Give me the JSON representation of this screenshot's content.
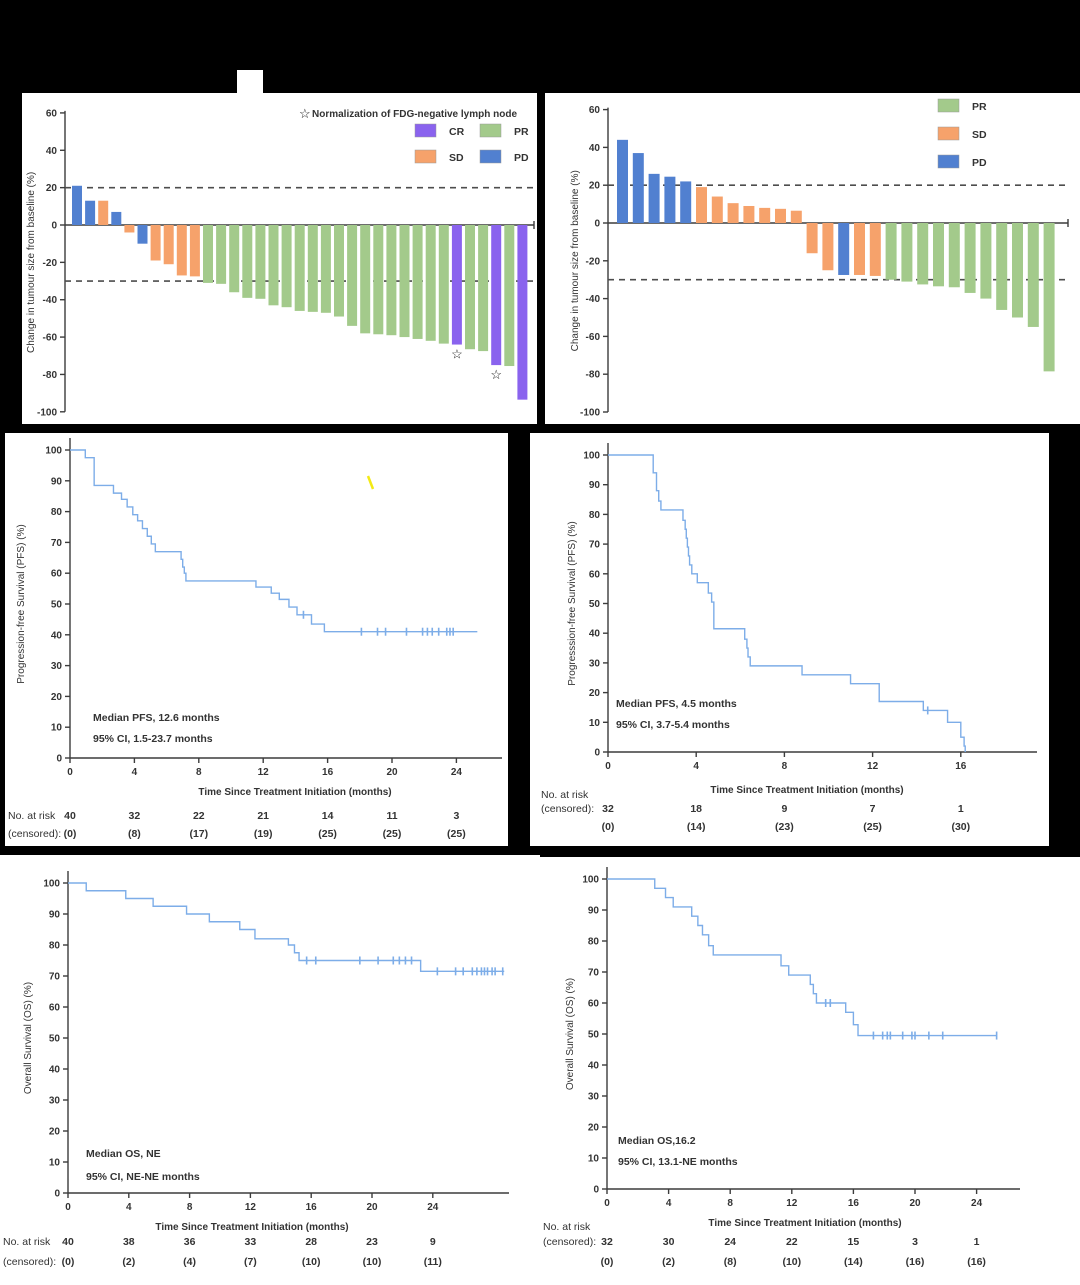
{
  "figure": {
    "background": "#000000",
    "panel_background": "#ffffff"
  },
  "colors": {
    "CR": "#8a63ee",
    "SD": "#f6a26b",
    "PR": "#a3ca8b",
    "PD": "#5180d0",
    "curve": "#7dade8",
    "axis": "#3c3c3c",
    "refline": "#4d4d4d",
    "text": "#333333",
    "artifact_yellow": "#f3ea15"
  },
  "icons": {
    "star": "☆"
  },
  "chart_data": [
    {
      "id": "wf-left",
      "type": "bar",
      "subtype": "waterfall",
      "ylabel": "Change in tumour size from baseline (%)",
      "ylim": [
        -100,
        60
      ],
      "yticks": [
        60,
        40,
        20,
        0,
        -20,
        -40,
        -60,
        -80,
        -100
      ],
      "reference_lines": [
        20,
        -30
      ],
      "note": {
        "icon": "star",
        "text": "Normalization of FDG-negative lymph node"
      },
      "legend": [
        {
          "label": "CR",
          "color_key": "CR"
        },
        {
          "label": "SD",
          "color_key": "SD"
        },
        {
          "label": "PR",
          "color_key": "PR"
        },
        {
          "label": "PD",
          "color_key": "PD"
        }
      ],
      "bars": [
        {
          "value": 21,
          "group": "PD"
        },
        {
          "value": 13,
          "group": "PD"
        },
        {
          "value": 13,
          "group": "SD"
        },
        {
          "value": 7,
          "group": "PD"
        },
        {
          "value": -4,
          "group": "SD"
        },
        {
          "value": -10,
          "group": "PD"
        },
        {
          "value": -19,
          "group": "SD"
        },
        {
          "value": -21,
          "group": "SD"
        },
        {
          "value": -27,
          "group": "SD"
        },
        {
          "value": -27.5,
          "group": "SD"
        },
        {
          "value": -31,
          "group": "PR"
        },
        {
          "value": -31.5,
          "group": "PR"
        },
        {
          "value": -36,
          "group": "PR"
        },
        {
          "value": -39,
          "group": "PR"
        },
        {
          "value": -39.5,
          "group": "PR"
        },
        {
          "value": -43,
          "group": "PR"
        },
        {
          "value": -44,
          "group": "PR"
        },
        {
          "value": -46,
          "group": "PR"
        },
        {
          "value": -46.5,
          "group": "PR"
        },
        {
          "value": -47,
          "group": "PR"
        },
        {
          "value": -49,
          "group": "PR"
        },
        {
          "value": -54,
          "group": "PR"
        },
        {
          "value": -58,
          "group": "PR"
        },
        {
          "value": -58.5,
          "group": "PR"
        },
        {
          "value": -59,
          "group": "PR"
        },
        {
          "value": -60,
          "group": "PR"
        },
        {
          "value": -61,
          "group": "PR"
        },
        {
          "value": -62,
          "group": "PR"
        },
        {
          "value": -63.5,
          "group": "PR"
        },
        {
          "value": -64,
          "group": "CR",
          "star": true
        },
        {
          "value": -66.5,
          "group": "PR"
        },
        {
          "value": -67.5,
          "group": "PR"
        },
        {
          "value": -75,
          "group": "CR",
          "star": true
        },
        {
          "value": -75.5,
          "group": "PR"
        },
        {
          "value": -93.5,
          "group": "CR"
        }
      ]
    },
    {
      "id": "wf-right",
      "type": "bar",
      "subtype": "waterfall",
      "ylabel": "Change in tumour size from baseline (%)",
      "ylim": [
        -100,
        60
      ],
      "yticks": [
        60,
        40,
        20,
        0,
        -20,
        -40,
        -60,
        -80,
        -100
      ],
      "reference_lines": [
        20,
        -30
      ],
      "legend": [
        {
          "label": "PR",
          "color_key": "PR"
        },
        {
          "label": "SD",
          "color_key": "SD"
        },
        {
          "label": "PD",
          "color_key": "PD"
        }
      ],
      "bars": [
        {
          "value": 44,
          "group": "PD"
        },
        {
          "value": 37,
          "group": "PD"
        },
        {
          "value": 26,
          "group": "PD"
        },
        {
          "value": 24.5,
          "group": "PD"
        },
        {
          "value": 22,
          "group": "PD"
        },
        {
          "value": 19,
          "group": "SD"
        },
        {
          "value": 14,
          "group": "SD"
        },
        {
          "value": 10.5,
          "group": "SD"
        },
        {
          "value": 9,
          "group": "SD"
        },
        {
          "value": 8,
          "group": "SD"
        },
        {
          "value": 7.5,
          "group": "SD"
        },
        {
          "value": 6.5,
          "group": "SD"
        },
        {
          "value": -16,
          "group": "SD"
        },
        {
          "value": -25,
          "group": "SD"
        },
        {
          "value": -27.5,
          "group": "PD"
        },
        {
          "value": -27.5,
          "group": "SD"
        },
        {
          "value": -28,
          "group": "SD"
        },
        {
          "value": -30,
          "group": "PR"
        },
        {
          "value": -31,
          "group": "PR"
        },
        {
          "value": -32.5,
          "group": "PR"
        },
        {
          "value": -33.5,
          "group": "PR"
        },
        {
          "value": -34,
          "group": "PR"
        },
        {
          "value": -37,
          "group": "PR"
        },
        {
          "value": -40,
          "group": "PR"
        },
        {
          "value": -46,
          "group": "PR"
        },
        {
          "value": -50,
          "group": "PR"
        },
        {
          "value": -55,
          "group": "PR"
        },
        {
          "value": -78.5,
          "group": "PR"
        }
      ]
    },
    {
      "id": "km-pfs-left",
      "type": "line",
      "subtype": "kaplan-meier",
      "ylabel": "Progression-free Survival (PFS) (%)",
      "xlabel": "Time Since Treatment Initiation (months)",
      "ylim": [
        0,
        100
      ],
      "yticks": [
        0,
        10,
        20,
        30,
        40,
        50,
        60,
        70,
        80,
        90,
        100
      ],
      "xticks": [
        0,
        4,
        8,
        12,
        16,
        20,
        24
      ],
      "annotation": [
        "Median PFS, 12.6 months",
        "95% CI, 1.5-23.7 months"
      ],
      "steps": [
        [
          0,
          100
        ],
        [
          0.95,
          97.5
        ],
        [
          1.5,
          88.5
        ],
        [
          2.7,
          86
        ],
        [
          3.2,
          84
        ],
        [
          3.55,
          81.5
        ],
        [
          3.9,
          79
        ],
        [
          4.2,
          77
        ],
        [
          4.5,
          74.5
        ],
        [
          4.8,
          72
        ],
        [
          5.05,
          69.5
        ],
        [
          5.3,
          67
        ],
        [
          6.9,
          64.5
        ],
        [
          7.0,
          62
        ],
        [
          7.1,
          60
        ],
        [
          7.2,
          57.5
        ],
        [
          11.55,
          55.5
        ],
        [
          12.5,
          53.5
        ],
        [
          13.0,
          51.5
        ],
        [
          13.6,
          49
        ],
        [
          14.1,
          46.5
        ],
        [
          15.0,
          43.5
        ],
        [
          15.8,
          41
        ]
      ],
      "curve_end": 25.3,
      "censor_marks": [
        [
          14.5,
          46.5
        ],
        [
          18.1,
          41
        ],
        [
          19.1,
          41
        ],
        [
          19.6,
          41
        ],
        [
          20.9,
          41
        ],
        [
          21.9,
          41
        ],
        [
          22.2,
          41
        ],
        [
          22.5,
          41
        ],
        [
          22.9,
          41
        ],
        [
          23.4,
          41
        ],
        [
          23.6,
          41
        ],
        [
          23.8,
          41
        ]
      ],
      "risk_table": {
        "label_line1": "No. at risk",
        "label_line2": "(censored):",
        "times": [
          0,
          4,
          8,
          12,
          16,
          20,
          24
        ],
        "at_risk": [
          40,
          32,
          22,
          21,
          14,
          11,
          3
        ],
        "censored": [
          0,
          8,
          17,
          19,
          25,
          25,
          25
        ],
        "layout": "inline"
      }
    },
    {
      "id": "km-pfs-right",
      "type": "line",
      "subtype": "kaplan-meier",
      "ylabel": "Progresssion-free Survival (PFS) (%)",
      "xlabel": "Time Since Treatment Initiation (months)",
      "ylim": [
        0,
        100
      ],
      "yticks": [
        0,
        10,
        20,
        30,
        40,
        50,
        60,
        70,
        80,
        90,
        100
      ],
      "xticks": [
        0,
        4,
        8,
        12,
        16
      ],
      "annotation": [
        "Median PFS, 4.5 months",
        "95% CI, 3.7-5.4 months"
      ],
      "steps": [
        [
          0,
          100
        ],
        [
          2.05,
          94
        ],
        [
          2.2,
          88
        ],
        [
          2.3,
          84.5
        ],
        [
          2.4,
          81.5
        ],
        [
          3.4,
          78
        ],
        [
          3.5,
          75
        ],
        [
          3.55,
          72
        ],
        [
          3.6,
          69
        ],
        [
          3.65,
          66
        ],
        [
          3.7,
          63
        ],
        [
          3.8,
          60
        ],
        [
          4.05,
          57
        ],
        [
          4.55,
          53.5
        ],
        [
          4.7,
          50.5
        ],
        [
          4.8,
          41.5
        ],
        [
          6.2,
          38
        ],
        [
          6.3,
          35
        ],
        [
          6.35,
          32
        ],
        [
          6.45,
          29
        ],
        [
          8.8,
          26
        ],
        [
          11.0,
          23
        ],
        [
          12.3,
          17
        ],
        [
          14.3,
          14
        ],
        [
          15.4,
          10
        ],
        [
          16.0,
          5
        ],
        [
          16.15,
          2
        ],
        [
          16.2,
          0
        ]
      ],
      "curve_end": 16.2,
      "censor_marks": [
        [
          14.5,
          14
        ]
      ],
      "risk_table": {
        "label_line1": "No. at risk",
        "label_line2": "(censored):",
        "times": [
          0,
          4,
          8,
          12,
          16
        ],
        "at_risk": [
          32,
          18,
          9,
          7,
          1
        ],
        "censored": [
          0,
          14,
          23,
          25,
          30
        ],
        "layout": "stacked"
      }
    },
    {
      "id": "km-os-left",
      "type": "line",
      "subtype": "kaplan-meier",
      "ylabel": "Overall Survival (OS) (%)",
      "xlabel": "Time Since Treatment Initiation (months)",
      "ylim": [
        0,
        100
      ],
      "yticks": [
        0,
        10,
        20,
        30,
        40,
        50,
        60,
        70,
        80,
        90,
        100
      ],
      "xticks": [
        0,
        4,
        8,
        12,
        16,
        20,
        24
      ],
      "annotation": [
        "Median OS, NE",
        "95% CI, NE-NE months"
      ],
      "steps": [
        [
          0,
          100
        ],
        [
          1.2,
          97.5
        ],
        [
          3.8,
          95
        ],
        [
          5.6,
          92.5
        ],
        [
          7.8,
          90
        ],
        [
          9.3,
          87.5
        ],
        [
          11.3,
          85
        ],
        [
          12.3,
          82
        ],
        [
          14.5,
          80
        ],
        [
          14.9,
          77.5
        ],
        [
          15.2,
          75
        ],
        [
          23.2,
          71.5
        ]
      ],
      "curve_end": 28.7,
      "censor_marks": [
        [
          15.7,
          75
        ],
        [
          16.3,
          75
        ],
        [
          19.2,
          75
        ],
        [
          20.4,
          75
        ],
        [
          21.4,
          75
        ],
        [
          21.8,
          75
        ],
        [
          22.2,
          75
        ],
        [
          22.6,
          75
        ],
        [
          24.3,
          71.5
        ],
        [
          25.5,
          71.5
        ],
        [
          26.0,
          71.5
        ],
        [
          26.6,
          71.5
        ],
        [
          26.9,
          71.5
        ],
        [
          27.2,
          71.5
        ],
        [
          27.4,
          71.5
        ],
        [
          27.6,
          71.5
        ],
        [
          27.9,
          71.5
        ],
        [
          28.1,
          71.5
        ],
        [
          28.6,
          71.5
        ]
      ],
      "risk_table": {
        "label_line1": "No. at risk",
        "label_line2": "(censored):",
        "times": [
          0,
          4,
          8,
          12,
          16,
          20,
          24
        ],
        "at_risk": [
          40,
          38,
          36,
          33,
          28,
          23,
          9
        ],
        "censored": [
          0,
          2,
          4,
          7,
          10,
          10,
          11
        ],
        "layout": "inline"
      }
    },
    {
      "id": "km-os-right",
      "type": "line",
      "subtype": "kaplan-meier",
      "ylabel": "Overall Survival (OS) (%)",
      "xlabel": "Time Since Treatment Initiation (months)",
      "ylim": [
        0,
        100
      ],
      "yticks": [
        0,
        10,
        20,
        30,
        40,
        50,
        60,
        70,
        80,
        90,
        100
      ],
      "xticks": [
        0,
        4,
        8,
        12,
        16,
        20,
        24
      ],
      "annotation": [
        "Median OS,16.2",
        "95% CI, 13.1-NE months"
      ],
      "steps": [
        [
          0,
          100
        ],
        [
          3.1,
          97
        ],
        [
          3.8,
          94
        ],
        [
          4.3,
          91
        ],
        [
          5.5,
          88
        ],
        [
          5.9,
          85
        ],
        [
          6.2,
          82
        ],
        [
          6.6,
          78.5
        ],
        [
          6.9,
          75.5
        ],
        [
          11.3,
          72
        ],
        [
          11.8,
          69
        ],
        [
          13.2,
          66
        ],
        [
          13.4,
          63
        ],
        [
          13.6,
          60
        ],
        [
          15.5,
          57
        ],
        [
          16.0,
          53
        ],
        [
          16.3,
          49.5
        ]
      ],
      "curve_end": 25.3,
      "censor_marks": [
        [
          14.2,
          60
        ],
        [
          14.5,
          60
        ],
        [
          17.3,
          49.5
        ],
        [
          17.9,
          49.5
        ],
        [
          18.2,
          49.5
        ],
        [
          18.4,
          49.5
        ],
        [
          19.2,
          49.5
        ],
        [
          19.8,
          49.5
        ],
        [
          20.0,
          49.5
        ],
        [
          20.9,
          49.5
        ],
        [
          21.8,
          49.5
        ],
        [
          25.3,
          49.5
        ]
      ],
      "risk_table": {
        "label_line1": "No. at risk",
        "label_line2": "(censored):",
        "times": [
          0,
          4,
          8,
          12,
          16,
          20,
          24
        ],
        "at_risk": [
          32,
          30,
          24,
          22,
          15,
          3,
          1
        ],
        "censored": [
          0,
          2,
          8,
          10,
          14,
          16,
          16
        ],
        "layout": "stacked"
      }
    }
  ]
}
